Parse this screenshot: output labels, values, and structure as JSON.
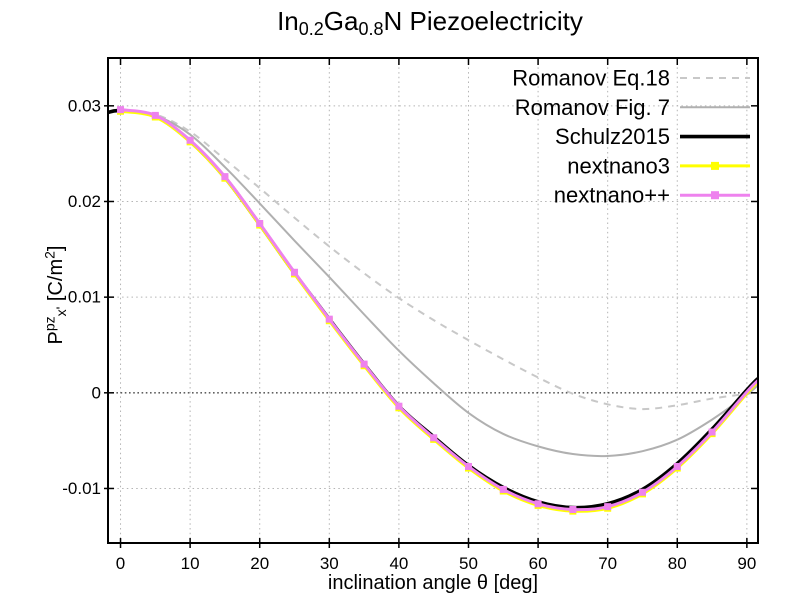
{
  "title": {
    "plain": "In0.2Ga0.8N Piezoelectricity",
    "segments": [
      {
        "t": "In"
      },
      {
        "t": "0.2",
        "sub": true
      },
      {
        "t": "Ga"
      },
      {
        "t": "0.8",
        "sub": true
      },
      {
        "t": "N Piezoelectricity"
      }
    ]
  },
  "colors": {
    "background": "#ffffff",
    "frame": "#000000",
    "grid": "#b4b4b4",
    "zero_line": "#000000",
    "dashed_gray": "#c8c8c8",
    "solid_gray": "#b0b0b0",
    "black": "#000000",
    "yellow": "#ffff00",
    "violet": "#ee82ee"
  },
  "chart_data": {
    "type": "line",
    "title": "In0.2Ga0.8N Piezoelectricity",
    "xlabel": "inclination angle θ [deg]",
    "ylabel": {
      "plain": "Ppz x' [C/m2]",
      "segments": [
        {
          "t": "P"
        },
        {
          "t": "pz",
          "sup": true
        },
        {
          "t": "x'",
          "sub": true
        },
        {
          "t": " [C/m",
          "reset": true
        },
        {
          "t": "2",
          "sup": true
        },
        {
          "t": "]",
          "reset": true
        }
      ]
    },
    "xlim": [
      -1.8,
      91.6
    ],
    "ylim": [
      -0.0157,
      0.035
    ],
    "xticks": [
      0,
      10,
      20,
      30,
      40,
      50,
      60,
      70,
      80,
      90
    ],
    "yticks": [
      {
        "v": -0.01,
        "label": "-0.01"
      },
      {
        "v": 0,
        "label": "0"
      },
      {
        "v": 0.01,
        "label": "0.01"
      },
      {
        "v": 0.02,
        "label": "0.02"
      },
      {
        "v": 0.03,
        "label": "0.03"
      }
    ],
    "grid": true,
    "zero_line": true,
    "legend_position": "top-right-inside",
    "series": [
      {
        "name": "Romanov Eq.18",
        "style": "dashed",
        "color": "#c8c8c8",
        "width": 2,
        "marker": null,
        "x": [
          -1.8,
          0,
          5,
          10,
          15,
          20,
          25,
          30,
          35,
          40,
          45,
          50,
          55,
          60,
          65,
          70,
          75,
          80,
          85,
          90,
          91.6
        ],
        "y": [
          0.0293,
          0.0295,
          0.0291,
          0.0273,
          0.0244,
          0.0214,
          0.0183,
          0.0153,
          0.0125,
          0.0099,
          0.0076,
          0.0055,
          0.0035,
          0.0016,
          -0.0001,
          -0.0012,
          -0.0017,
          -0.0013,
          -0.0006,
          -0.0001,
          0.0001
        ]
      },
      {
        "name": "Romanov Fig. 7",
        "style": "solid",
        "color": "#b0b0b0",
        "width": 2,
        "marker": null,
        "x": [
          -1.8,
          0,
          5,
          10,
          15,
          20,
          25,
          30,
          35,
          40,
          45,
          50,
          55,
          60,
          65,
          70,
          75,
          80,
          85,
          90,
          91.6
        ],
        "y": [
          0.0293,
          0.0295,
          0.029,
          0.027,
          0.0236,
          0.0198,
          0.0159,
          0.0121,
          0.0082,
          0.0044,
          0.001,
          -0.0021,
          -0.0043,
          -0.0056,
          -0.0064,
          -0.0066,
          -0.0061,
          -0.0049,
          -0.0028,
          -0.0002,
          0.0008
        ]
      },
      {
        "name": "Schulz2015",
        "style": "solid",
        "color": "#000000",
        "width": 3.6,
        "marker": null,
        "x": [
          -1.8,
          0,
          5,
          10,
          15,
          20,
          25,
          30,
          35,
          40,
          45,
          50,
          55,
          60,
          65,
          70,
          75,
          80,
          85,
          90,
          91.6
        ],
        "y": [
          0.0293,
          0.0295,
          0.0289,
          0.0263,
          0.0225,
          0.0176,
          0.0125,
          0.0077,
          0.003,
          -0.0014,
          -0.0046,
          -0.0076,
          -0.0099,
          -0.0114,
          -0.012,
          -0.0116,
          -0.0101,
          -0.0074,
          -0.0038,
          0.0003,
          0.0015
        ]
      },
      {
        "name": "nextnano3",
        "style": "solid-marker",
        "color": "#ffff00",
        "width": 3,
        "marker": "square",
        "x": [
          0,
          5,
          10,
          15,
          20,
          25,
          30,
          35,
          40,
          45,
          50,
          55,
          60,
          65,
          70,
          75,
          80,
          85,
          90,
          91.6
        ],
        "y": [
          0.0296,
          0.029,
          0.0264,
          0.0226,
          0.0177,
          0.0126,
          0.0077,
          0.003,
          -0.0014,
          -0.0047,
          -0.0077,
          -0.0101,
          -0.0116,
          -0.0122,
          -0.0119,
          -0.0104,
          -0.0077,
          -0.0041,
          0.0001,
          0.0013
        ]
      },
      {
        "name": "nextnano++",
        "style": "solid-marker",
        "color": "#ee82ee",
        "width": 3,
        "marker": "square",
        "x": [
          0,
          5,
          10,
          15,
          20,
          25,
          30,
          35,
          40,
          45,
          50,
          55,
          60,
          65,
          70,
          75,
          80,
          85,
          90,
          91.6
        ],
        "y": [
          0.0296,
          0.029,
          0.0264,
          0.0226,
          0.0177,
          0.0126,
          0.0077,
          0.003,
          -0.0014,
          -0.0047,
          -0.0077,
          -0.0101,
          -0.0116,
          -0.0122,
          -0.0119,
          -0.0104,
          -0.0077,
          -0.0041,
          0.0001,
          0.0013
        ]
      }
    ]
  }
}
